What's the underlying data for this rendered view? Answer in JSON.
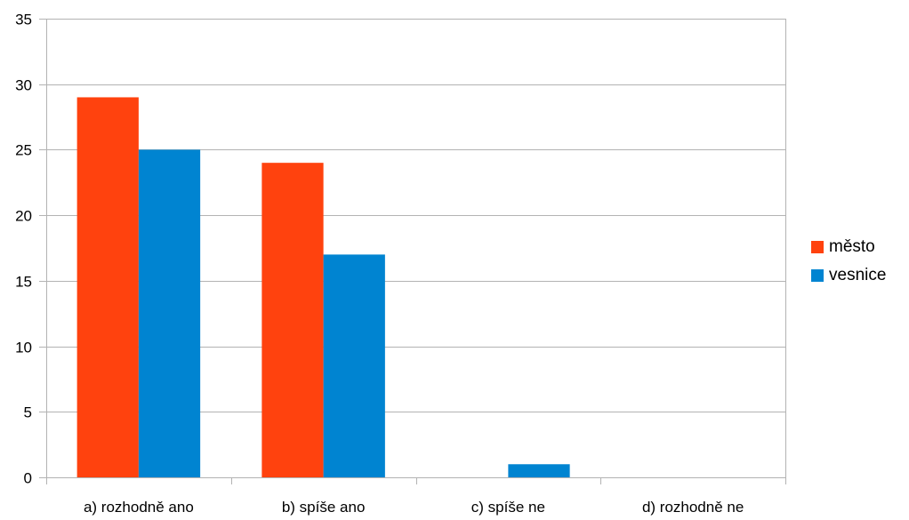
{
  "chart_data": {
    "type": "bar",
    "title": "",
    "xlabel": "",
    "ylabel": "",
    "categories": [
      "a) rozhodně ano",
      "b) spíše ano",
      "c) spíše ne",
      "d) rozhodně ne"
    ],
    "series": [
      {
        "name": "město",
        "color": "#ff420e",
        "values": [
          29,
          24,
          0,
          0
        ]
      },
      {
        "name": "vesnice",
        "color": "#0084d1",
        "values": [
          25,
          17,
          1,
          0
        ]
      }
    ],
    "ylim": [
      0,
      35
    ],
    "yticks": [
      0,
      5,
      10,
      15,
      20,
      25,
      30,
      35
    ],
    "grid": true,
    "legend_position": "right"
  }
}
